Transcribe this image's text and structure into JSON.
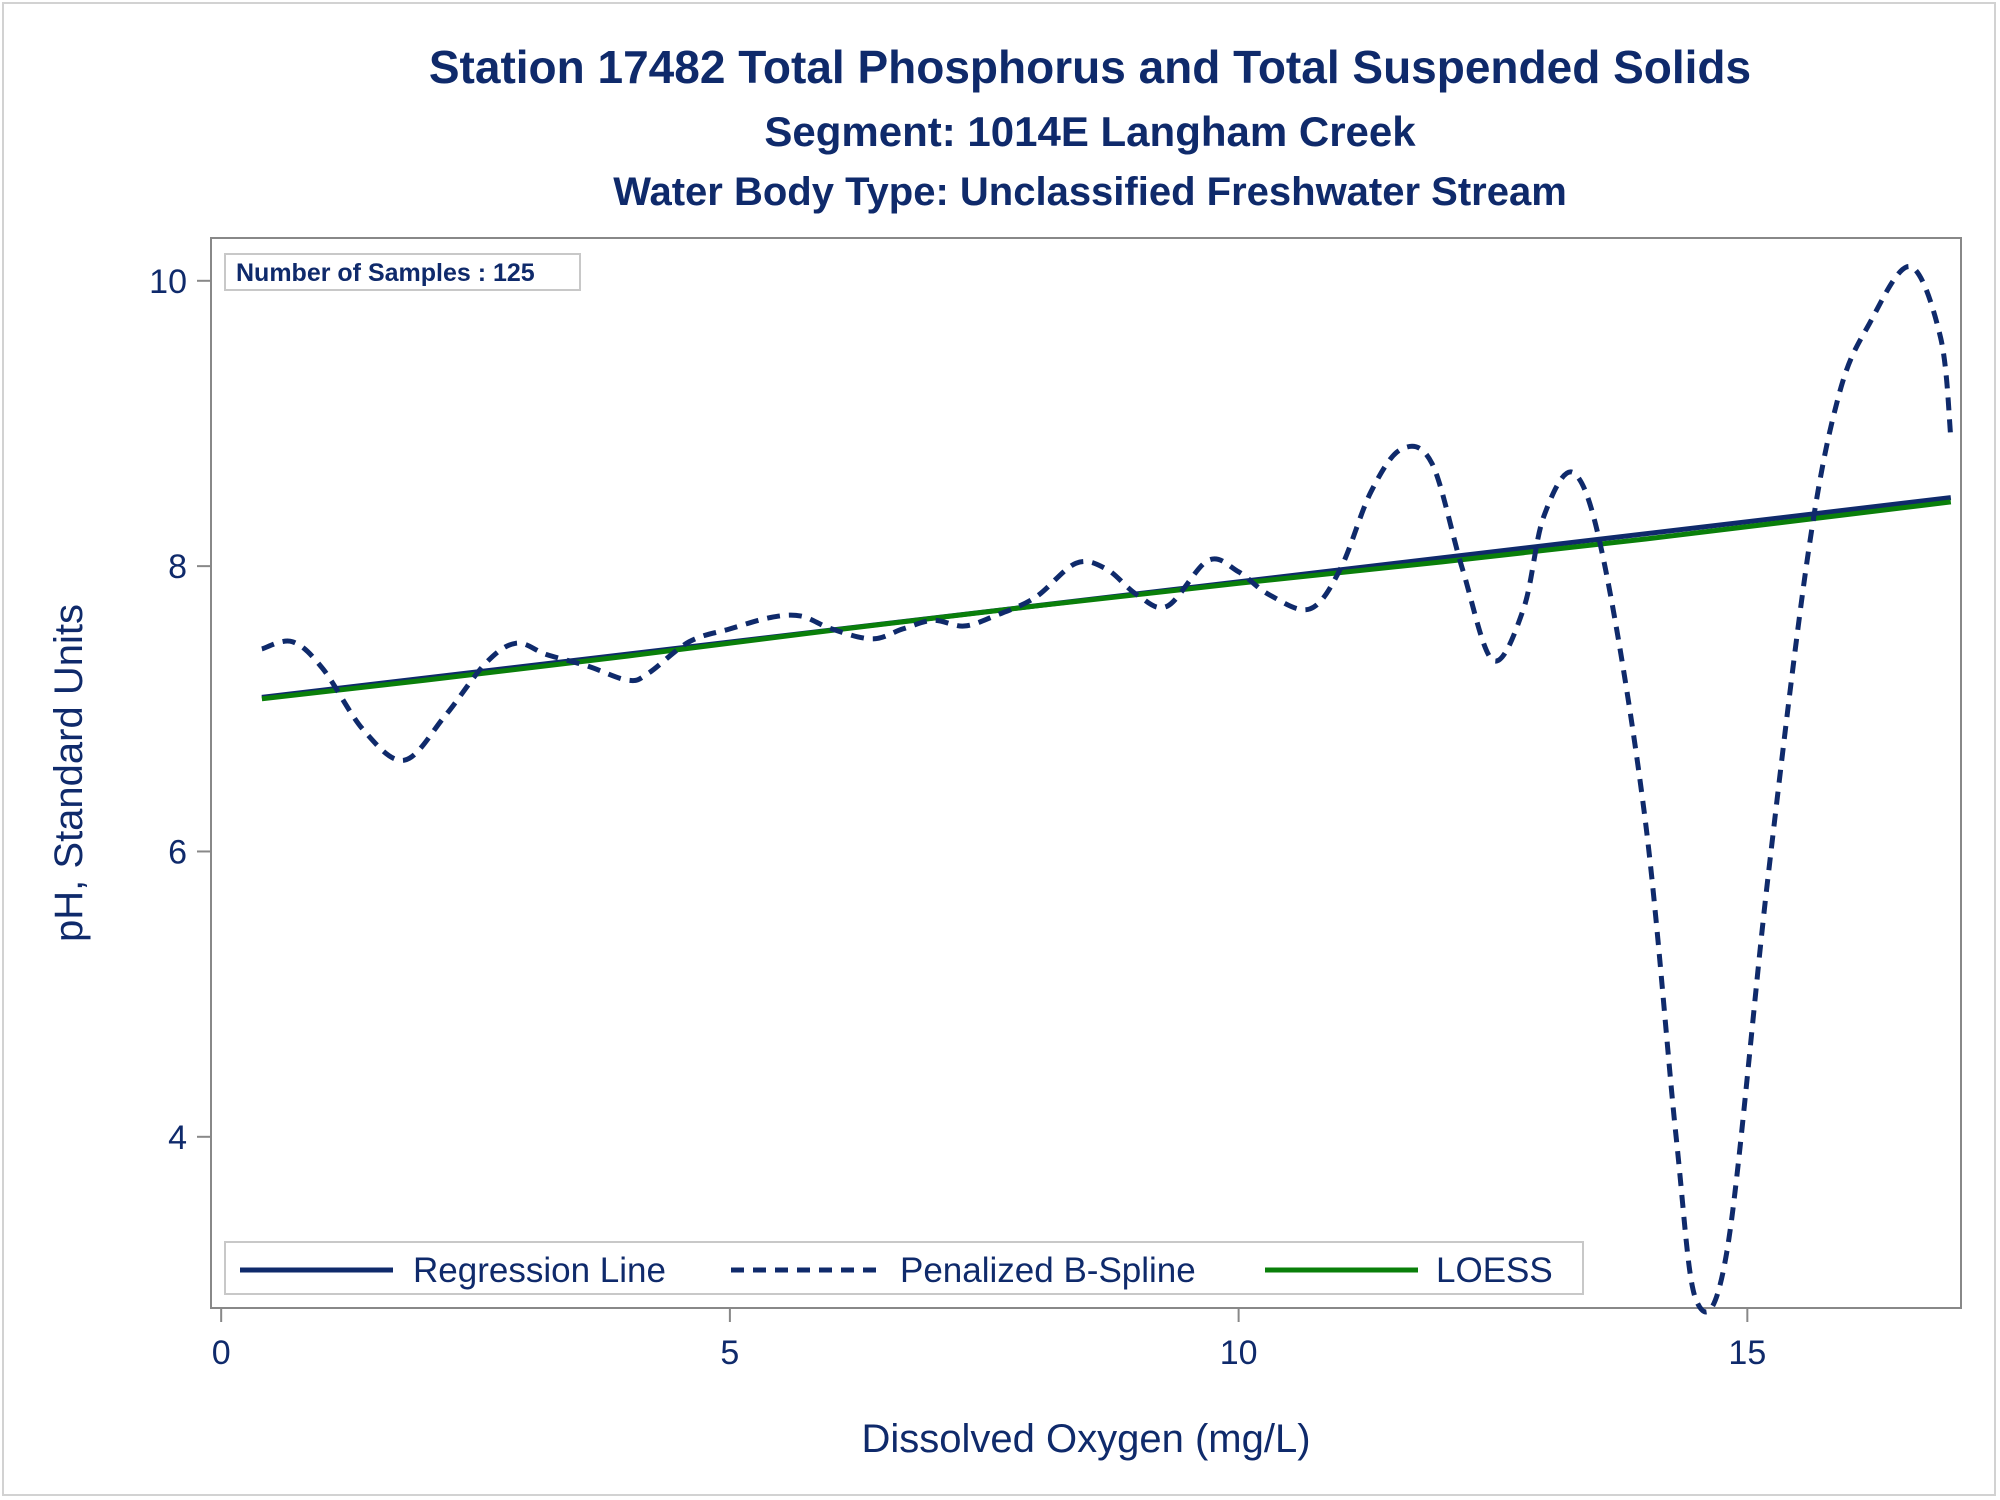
{
  "colors": {
    "text": "#0f2a6b",
    "regression": "#0f2a6b",
    "spline": "#0f2a6b",
    "loess": "#0a7f0a",
    "axis": "#888888",
    "frame_border": "#d2d2d2"
  },
  "chart_data": {
    "type": "line",
    "title": "Station 17482  Total Phosphorus and Total Suspended Solids",
    "subtitle": "Segment: 1014E  Langham Creek",
    "subtitle2": "Water Body Type: Unclassified Freshwater Stream",
    "xlabel": "Dissolved Oxygen (mg/L)",
    "ylabel": "pH, Standard Units",
    "xlim": [
      -0.1,
      17.1
    ],
    "ylim": [
      2.8,
      10.3
    ],
    "x_ticks": [
      0,
      5,
      10,
      15
    ],
    "y_ticks": [
      4,
      6,
      8,
      10
    ],
    "grid": false,
    "inset_label": "Number of Samples : 125",
    "legend_position": "bottom-left inside",
    "series": [
      {
        "name": "Regression Line",
        "style": "solid",
        "x": [
          0.4,
          17.0
        ],
        "y": [
          7.08,
          8.48
        ]
      },
      {
        "name": "Penalized B-Spline",
        "style": "dashed",
        "x": [
          0.4,
          0.7,
          1.0,
          1.4,
          1.8,
          2.2,
          2.6,
          2.9,
          3.2,
          3.6,
          4.0,
          4.2,
          4.6,
          5.0,
          5.4,
          5.7,
          6.0,
          6.4,
          6.7,
          7.0,
          7.3,
          7.6,
          8.0,
          8.4,
          8.7,
          9.0,
          9.3,
          9.7,
          10.0,
          10.3,
          10.7,
          11.0,
          11.3,
          11.6,
          11.9,
          12.2,
          12.5,
          12.8,
          13.0,
          13.3,
          13.6,
          14.0,
          14.3,
          14.5,
          14.8,
          15.2,
          15.6,
          15.9,
          16.2,
          16.6,
          16.9,
          17.0
        ],
        "y": [
          7.42,
          7.47,
          7.28,
          6.85,
          6.64,
          6.95,
          7.32,
          7.46,
          7.38,
          7.3,
          7.2,
          7.25,
          7.47,
          7.56,
          7.64,
          7.65,
          7.56,
          7.49,
          7.56,
          7.62,
          7.58,
          7.65,
          7.78,
          8.02,
          7.98,
          7.8,
          7.72,
          8.04,
          7.96,
          7.8,
          7.7,
          7.98,
          8.52,
          8.82,
          8.72,
          7.98,
          7.34,
          7.7,
          8.35,
          8.65,
          8.0,
          6.2,
          4.0,
          2.85,
          3.2,
          5.8,
          8.1,
          9.2,
          9.7,
          10.1,
          9.6,
          8.9
        ]
      },
      {
        "name": "LOESS",
        "style": "solid",
        "x": [
          0.4,
          2.0,
          4.0,
          6.0,
          8.0,
          10.0,
          12.0,
          14.0,
          17.0
        ],
        "y": [
          7.07,
          7.2,
          7.37,
          7.55,
          7.72,
          7.88,
          8.03,
          8.19,
          8.45
        ]
      }
    ]
  }
}
